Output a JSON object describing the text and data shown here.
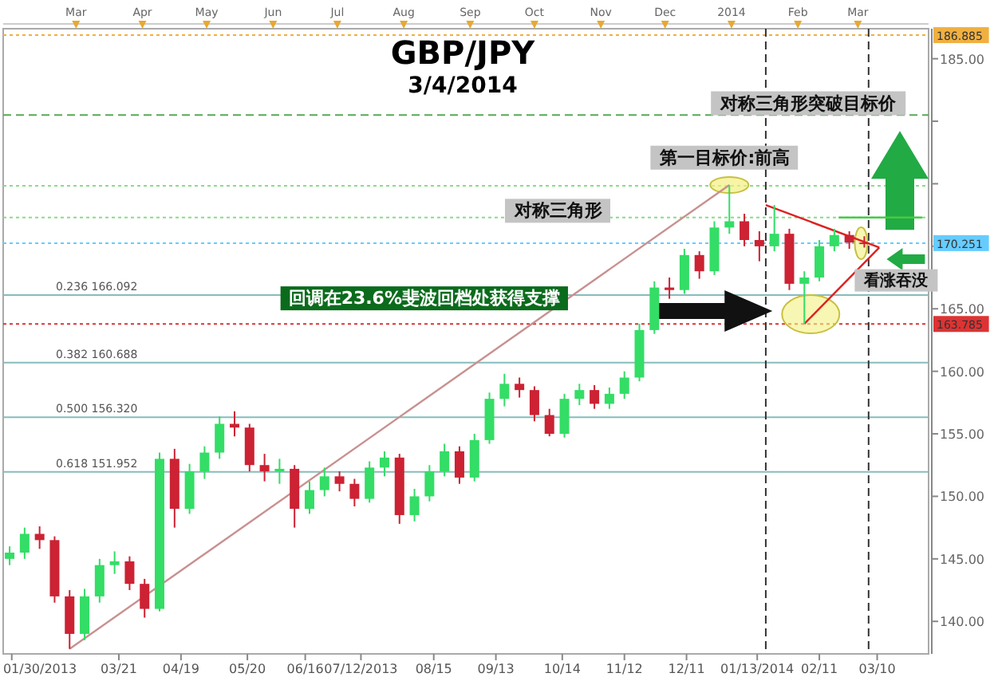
{
  "chart_data": {
    "type": "candlestick",
    "title": "GBP/JPY",
    "subtitle": "3/4/2014",
    "x": [
      "2013-01-29",
      "2013-02-05",
      "2013-02-12",
      "2013-02-19",
      "2013-02-26",
      "2013-03-05",
      "2013-03-12",
      "2013-03-19",
      "2013-03-26",
      "2013-04-02",
      "2013-04-09",
      "2013-04-16",
      "2013-04-23",
      "2013-04-30",
      "2013-05-07",
      "2013-05-14",
      "2013-05-21",
      "2013-05-28",
      "2013-06-04",
      "2013-06-11",
      "2013-06-18",
      "2013-06-25",
      "2013-07-02",
      "2013-07-09",
      "2013-07-16",
      "2013-07-23",
      "2013-07-30",
      "2013-08-06",
      "2013-08-13",
      "2013-08-20",
      "2013-08-27",
      "2013-09-03",
      "2013-09-10",
      "2013-09-17",
      "2013-09-24",
      "2013-10-01",
      "2013-10-08",
      "2013-10-15",
      "2013-10-22",
      "2013-10-29",
      "2013-11-05",
      "2013-11-12",
      "2013-11-19",
      "2013-11-26",
      "2013-12-03",
      "2013-12-10",
      "2013-12-17",
      "2013-12-24",
      "2013-12-31",
      "2014-01-07",
      "2014-01-14",
      "2014-01-21",
      "2014-01-28",
      "2014-02-04",
      "2014-02-11",
      "2014-02-18",
      "2014-02-25",
      "2014-03-04"
    ],
    "ohlc": [
      [
        145.0,
        146.0,
        144.5,
        145.5
      ],
      [
        145.5,
        147.5,
        145.0,
        147.0
      ],
      [
        147.0,
        147.6,
        145.8,
        146.5
      ],
      [
        146.5,
        146.8,
        141.5,
        142.0
      ],
      [
        142.0,
        142.5,
        137.8,
        139.0
      ],
      [
        139.0,
        142.6,
        138.5,
        142.0
      ],
      [
        142.0,
        145.0,
        141.5,
        144.5
      ],
      [
        144.5,
        145.6,
        143.8,
        144.8
      ],
      [
        144.8,
        145.2,
        142.5,
        143.0
      ],
      [
        143.0,
        143.4,
        140.3,
        141.0
      ],
      [
        141.0,
        153.5,
        140.8,
        153.0
      ],
      [
        153.0,
        153.8,
        147.5,
        149.0
      ],
      [
        149.0,
        152.6,
        148.6,
        152.0
      ],
      [
        152.0,
        154.0,
        151.4,
        153.5
      ],
      [
        153.5,
        156.4,
        153.0,
        155.8
      ],
      [
        155.8,
        156.8,
        154.8,
        155.5
      ],
      [
        155.5,
        155.8,
        152.0,
        152.5
      ],
      [
        152.5,
        153.4,
        151.2,
        152.0
      ],
      [
        152.0,
        153.0,
        151.0,
        152.2
      ],
      [
        152.2,
        152.5,
        147.5,
        149.0
      ],
      [
        149.0,
        151.2,
        148.6,
        150.5
      ],
      [
        150.5,
        152.3,
        150.0,
        151.6
      ],
      [
        151.6,
        152.0,
        150.4,
        151.0
      ],
      [
        151.0,
        151.4,
        149.2,
        149.8
      ],
      [
        149.8,
        152.8,
        149.5,
        152.3
      ],
      [
        152.3,
        153.6,
        151.6,
        153.1
      ],
      [
        153.1,
        153.4,
        147.8,
        148.5
      ],
      [
        148.5,
        150.6,
        148.0,
        150.0
      ],
      [
        150.0,
        152.5,
        149.6,
        152.0
      ],
      [
        152.0,
        154.2,
        151.6,
        153.6
      ],
      [
        153.6,
        154.0,
        151.0,
        151.5
      ],
      [
        151.5,
        155.0,
        151.2,
        154.5
      ],
      [
        154.5,
        158.3,
        154.2,
        157.8
      ],
      [
        157.8,
        159.8,
        157.2,
        159.0
      ],
      [
        159.0,
        159.5,
        157.9,
        158.5
      ],
      [
        158.5,
        158.8,
        156.0,
        156.5
      ],
      [
        156.5,
        157.0,
        154.8,
        155.0
      ],
      [
        155.0,
        158.2,
        154.7,
        157.8
      ],
      [
        157.8,
        159.0,
        157.3,
        158.5
      ],
      [
        158.5,
        158.9,
        157.0,
        157.4
      ],
      [
        157.4,
        158.7,
        157.0,
        158.2
      ],
      [
        158.2,
        160.0,
        157.8,
        159.5
      ],
      [
        159.5,
        163.8,
        159.2,
        163.3
      ],
      [
        163.3,
        167.2,
        163.0,
        166.7
      ],
      [
        166.7,
        167.5,
        165.8,
        166.5
      ],
      [
        166.5,
        169.8,
        166.2,
        169.3
      ],
      [
        169.3,
        169.6,
        167.4,
        168.0
      ],
      [
        168.0,
        172.0,
        167.7,
        171.5
      ],
      [
        171.5,
        174.9,
        171.0,
        172.0
      ],
      [
        172.0,
        172.6,
        170.0,
        170.5
      ],
      [
        170.5,
        171.2,
        168.8,
        170.0
      ],
      [
        170.0,
        173.3,
        169.6,
        171.0
      ],
      [
        171.0,
        171.4,
        166.5,
        167.0
      ],
      [
        167.0,
        168.0,
        163.8,
        167.5
      ],
      [
        167.5,
        170.5,
        167.2,
        170.0
      ],
      [
        170.0,
        171.4,
        169.6,
        170.9
      ],
      [
        170.9,
        171.2,
        169.8,
        170.3
      ],
      [
        170.3,
        170.8,
        169.9,
        170.25
      ]
    ],
    "colors": [
      "#33dd66",
      "#33dd66",
      "#cc2233",
      "#cc2233",
      "#cc2233",
      "#33dd66",
      "#33dd66",
      "#33dd66",
      "#cc2233",
      "#cc2233",
      "#33dd66",
      "#cc2233",
      "#33dd66",
      "#33dd66",
      "#33dd66",
      "#cc2233",
      "#cc2233",
      "#cc2233",
      "#33dd66",
      "#cc2233",
      "#33dd66",
      "#33dd66",
      "#cc2233",
      "#cc2233",
      "#33dd66",
      "#33dd66",
      "#cc2233",
      "#33dd66",
      "#33dd66",
      "#33dd66",
      "#cc2233",
      "#33dd66",
      "#33dd66",
      "#33dd66",
      "#cc2233",
      "#cc2233",
      "#cc2233",
      "#33dd66",
      "#33dd66",
      "#cc2233",
      "#33dd66",
      "#33dd66",
      "#33dd66",
      "#33dd66",
      "#cc2233",
      "#33dd66",
      "#cc2233",
      "#33dd66",
      "#33dd66",
      "#cc2233",
      "#cc2233",
      "#33dd66",
      "#cc2233",
      "#33dd66",
      "#33dd66",
      "#33dd66",
      "#cc2233",
      "#cc2233"
    ],
    "series": [
      {
        "type": "line",
        "color": "#c89090",
        "x": [
          "2013-02-26",
          "2013-12-31"
        ],
        "values": [
          137.8,
          174.9
        ]
      },
      {
        "type": "line",
        "color": "#dd2222",
        "x": [
          "2014-01-17",
          "2014-03-11"
        ],
        "values": [
          173.3,
          169.9
        ]
      },
      {
        "type": "line",
        "color": "#dd2222",
        "x": [
          "2014-02-04",
          "2014-03-11"
        ],
        "values": [
          163.8,
          169.9
        ]
      },
      {
        "type": "line",
        "color": "#44cc44",
        "x": [
          "2014-02-20",
          "2014-03-31"
        ],
        "values": [
          172.3,
          172.3
        ]
      }
    ],
    "xlim": [
      "2013-01-26",
      "2014-04-03"
    ],
    "ylim": [
      137.4,
      187.4
    ],
    "yticks": [
      {
        "value": 140,
        "label": "140.00"
      },
      {
        "value": 145,
        "label": "145.00"
      },
      {
        "value": 150,
        "label": "150.00"
      },
      {
        "value": 155,
        "label": "155.00"
      },
      {
        "value": 160,
        "label": "160.00"
      },
      {
        "value": 165,
        "label": "165.00"
      },
      {
        "value": 170,
        "label": null
      },
      {
        "value": 175,
        "label": null
      },
      {
        "value": 180,
        "label": null
      },
      {
        "value": 185,
        "label": "185.00"
      }
    ],
    "xticks": [
      {
        "value": "2013-01-30",
        "label": "01/30/2013"
      },
      {
        "value": "2013-03-21",
        "label": "03/21"
      },
      {
        "value": "2013-04-19",
        "label": "04/19"
      },
      {
        "value": "2013-05-20",
        "label": "05/20"
      },
      {
        "value": "2013-06-16",
        "label": "06/16"
      },
      {
        "value": "2013-07-12",
        "label": "07/12/2013"
      },
      {
        "value": "2013-08-15",
        "label": "08/15"
      },
      {
        "value": "2013-09-13",
        "label": "09/13"
      },
      {
        "value": "2013-10-14",
        "label": "10/14"
      },
      {
        "value": "2013-11-12",
        "label": "11/12"
      },
      {
        "value": "2013-12-11",
        "label": "12/11"
      },
      {
        "value": "2014-01-13",
        "label": "01/13/2014"
      },
      {
        "value": "2014-02-11",
        "label": "02/11"
      },
      {
        "value": "2014-03-10",
        "label": "03/10"
      }
    ],
    "x2lim": [
      "2013-01-26",
      "2014-04-03"
    ],
    "x2ticks": [
      {
        "value": "2013-03-01",
        "label": "Mar"
      },
      {
        "value": "2013-04-01",
        "label": "Apr"
      },
      {
        "value": "2013-05-01",
        "label": "May"
      },
      {
        "value": "2013-06-01",
        "label": "Jun"
      },
      {
        "value": "2013-07-01",
        "label": "Jul"
      },
      {
        "value": "2013-08-01",
        "label": "Aug"
      },
      {
        "value": "2013-09-01",
        "label": "Sep"
      },
      {
        "value": "2013-10-01",
        "label": "Oct"
      },
      {
        "value": "2013-11-01",
        "label": "Nov"
      },
      {
        "value": "2013-12-01",
        "label": "Dec"
      },
      {
        "value": "2014-01-01",
        "label": "2014"
      },
      {
        "value": "2014-02-01",
        "label": "Feb"
      },
      {
        "value": "2014-03-01",
        "label": "Mar"
      }
    ],
    "ref_lines": [
      {
        "axis": "y",
        "value": 186.885,
        "label": "186.885",
        "color": "#f0b040",
        "line_style": "dotted"
      },
      {
        "axis": "y",
        "value": 180.5,
        "label": null,
        "color": "#55aa55",
        "line_style": "dashed"
      },
      {
        "axis": "y",
        "value": 174.83,
        "label": null,
        "color": "#88dd88",
        "line_style": "dotted"
      },
      {
        "axis": "y",
        "value": 172.3,
        "label": null,
        "color": "#88dd88",
        "line_style": "dotted"
      },
      {
        "axis": "y",
        "value": 170.251,
        "label": "170.251",
        "color": "#66ccff",
        "line_style": "dotted"
      },
      {
        "axis": "y",
        "value": 166.092,
        "label": "0.236 166.092",
        "color": "#88bbbb",
        "line_style": "solid"
      },
      {
        "axis": "y",
        "value": 163.785,
        "label": "163.785",
        "color": "#dd3333",
        "line_style": "dotted"
      },
      {
        "axis": "y",
        "value": 160.688,
        "label": "0.382 160.688",
        "color": "#88bbbb",
        "line_style": "solid"
      },
      {
        "axis": "y",
        "value": 156.32,
        "label": "0.500 156.320",
        "color": "#88bbbb",
        "line_style": "solid"
      },
      {
        "axis": "y",
        "value": 151.952,
        "label": "0.618 151.952",
        "color": "#88bbbb",
        "line_style": "solid"
      },
      {
        "axis": "x",
        "value": "2014-01-17",
        "label": null,
        "color": "#333333",
        "line_style": "dashed"
      },
      {
        "axis": "x",
        "value": "2014-03-06",
        "label": null,
        "color": "#333333",
        "line_style": "dashed"
      }
    ],
    "annotations": [
      "对称三角形突破目标价",
      "第一目标价:前高",
      "对称三角形",
      "回调在23.6%斐波回档处获得支撑",
      "看涨吞没"
    ]
  }
}
